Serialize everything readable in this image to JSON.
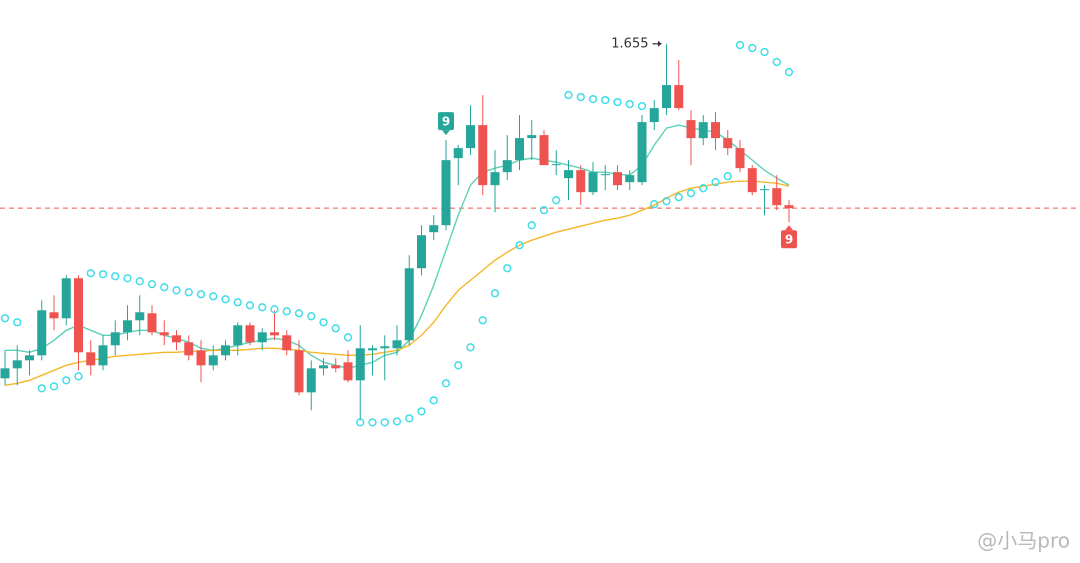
{
  "chart_data": {
    "type": "candlestick",
    "ylim": [
      1.24,
      1.69
    ],
    "up_color": "#26a69a",
    "down_color": "#ef5350",
    "open": [
      1.3876,
      1.3956,
      1.402,
      1.406,
      1.4404,
      1.4356,
      1.4676,
      1.4084,
      1.398,
      1.414,
      1.4244,
      1.434,
      1.4396,
      1.4244,
      1.422,
      1.4164,
      1.41,
      1.398,
      1.406,
      1.414,
      1.43,
      1.4164,
      1.4244,
      1.422,
      1.41,
      1.3764,
      1.3956,
      1.398,
      1.4004,
      1.386,
      1.41,
      1.4116,
      1.4116,
      1.418,
      1.4756,
      1.5044,
      1.51,
      1.5636,
      1.5716,
      1.59,
      1.542,
      1.5524,
      1.562,
      1.5796,
      1.582,
      1.558,
      1.5476,
      1.554,
      1.5364,
      1.55,
      1.5524,
      1.5444,
      1.5444,
      1.5924,
      1.6036,
      1.622,
      1.594,
      1.5796,
      1.5924,
      1.5796,
      1.5716,
      1.5556,
      1.538,
      1.5396,
      1.526
    ],
    "high": [
      1.41,
      1.414,
      1.41,
      1.45,
      1.454,
      1.47,
      1.47,
      1.418,
      1.422,
      1.434,
      1.446,
      1.454,
      1.446,
      1.434,
      1.426,
      1.422,
      1.418,
      1.414,
      1.418,
      1.4324,
      1.4324,
      1.4276,
      1.442,
      1.426,
      1.418,
      1.402,
      1.4036,
      1.4036,
      1.41,
      1.43,
      1.414,
      1.422,
      1.43,
      1.486,
      1.51,
      1.518,
      1.578,
      1.574,
      1.606,
      1.614,
      1.57,
      1.582,
      1.598,
      1.594,
      1.586,
      1.57,
      1.562,
      1.558,
      1.5604,
      1.558,
      1.558,
      1.554,
      1.598,
      1.61,
      1.655,
      1.642,
      1.602,
      1.598,
      1.6004,
      1.586,
      1.578,
      1.558,
      1.542,
      1.55,
      1.53
    ],
    "low": [
      1.382,
      1.382,
      1.39,
      1.402,
      1.426,
      1.43,
      1.394,
      1.39,
      1.394,
      1.406,
      1.418,
      1.422,
      1.422,
      1.414,
      1.41,
      1.402,
      1.3844,
      1.394,
      1.402,
      1.406,
      1.414,
      1.41,
      1.418,
      1.406,
      1.374,
      1.362,
      1.39,
      1.3924,
      1.3844,
      1.354,
      1.39,
      1.386,
      1.406,
      1.414,
      1.47,
      1.498,
      1.506,
      1.542,
      1.566,
      1.534,
      1.5204,
      1.546,
      1.554,
      1.562,
      1.558,
      1.55,
      1.53,
      1.526,
      1.534,
      1.538,
      1.538,
      1.538,
      1.542,
      1.586,
      1.598,
      1.602,
      1.558,
      1.574,
      1.57,
      1.566,
      1.5524,
      1.534,
      1.518,
      1.522,
      1.5124
    ],
    "close": [
      1.3956,
      1.402,
      1.406,
      1.442,
      1.4356,
      1.4676,
      1.4084,
      1.398,
      1.414,
      1.4244,
      1.434,
      1.4404,
      1.4244,
      1.422,
      1.4164,
      1.406,
      1.398,
      1.406,
      1.414,
      1.43,
      1.4164,
      1.4244,
      1.422,
      1.41,
      1.3764,
      1.3956,
      1.398,
      1.3956,
      1.386,
      1.4116,
      1.4116,
      1.4132,
      1.418,
      1.4756,
      1.502,
      1.51,
      1.562,
      1.5716,
      1.59,
      1.542,
      1.5524,
      1.562,
      1.5796,
      1.582,
      1.558,
      1.5588,
      1.554,
      1.5364,
      1.5524,
      1.5508,
      1.542,
      1.55,
      1.5924,
      1.6036,
      1.622,
      1.6036,
      1.5796,
      1.5924,
      1.5796,
      1.5716,
      1.5556,
      1.5364,
      1.5388,
      1.526,
      1.5236
    ],
    "lines": [
      {
        "color": "#5cd1b8",
        "values": [
          1.41,
          1.41,
          1.4084,
          1.4116,
          1.418,
          1.426,
          1.43,
          1.426,
          1.422,
          1.422,
          1.4244,
          1.426,
          1.426,
          1.422,
          1.4196,
          1.4164,
          1.4116,
          1.41,
          1.4116,
          1.414,
          1.4164,
          1.418,
          1.4196,
          1.418,
          1.414,
          1.406,
          1.4004,
          1.398,
          1.3956,
          1.398,
          1.4004,
          1.406,
          1.4084,
          1.418,
          1.438,
          1.462,
          1.49,
          1.518,
          1.542,
          1.5524,
          1.5556,
          1.558,
          1.562,
          1.5636,
          1.562,
          1.5604,
          1.558,
          1.5556,
          1.5524,
          1.5524,
          1.5508,
          1.55,
          1.558,
          1.574,
          1.5876,
          1.59,
          1.5876,
          1.586,
          1.5844,
          1.578,
          1.57,
          1.562,
          1.554,
          1.5476,
          1.542
        ]
      },
      {
        "color": "#f5b727",
        "values": [
          1.382,
          1.3836,
          1.386,
          1.39,
          1.394,
          1.398,
          1.4004,
          1.402,
          1.4036,
          1.4052,
          1.406,
          1.4068,
          1.4076,
          1.4084,
          1.4084,
          1.4092,
          1.4092,
          1.41,
          1.41,
          1.41,
          1.4108,
          1.4116,
          1.4116,
          1.4108,
          1.41,
          1.4084,
          1.4076,
          1.4068,
          1.406,
          1.406,
          1.4068,
          1.4084,
          1.41,
          1.414,
          1.422,
          1.4324,
          1.446,
          1.458,
          1.466,
          1.474,
          1.482,
          1.4884,
          1.494,
          1.498,
          1.5012,
          1.5044,
          1.5068,
          1.5092,
          1.5116,
          1.514,
          1.5156,
          1.518,
          1.522,
          1.526,
          1.5316,
          1.5364,
          1.5396,
          1.5412,
          1.5428,
          1.5444,
          1.5452,
          1.5452,
          1.5444,
          1.5436,
          1.5412
        ]
      }
    ],
    "sar": {
      "color": "#3fdde8",
      "values": [
        1.4356,
        1.4324,
        null,
        1.3796,
        1.3812,
        1.386,
        1.3892,
        1.4716,
        1.4708,
        1.4692,
        1.4676,
        1.4652,
        1.4628,
        1.4604,
        1.458,
        1.4564,
        1.4548,
        1.4532,
        1.4508,
        1.4484,
        1.446,
        1.4444,
        1.4428,
        1.4412,
        1.4396,
        1.4372,
        1.4324,
        1.4276,
        1.4204,
        1.3524,
        1.3524,
        1.3524,
        1.3532,
        1.3556,
        1.3612,
        1.37,
        1.3836,
        1.398,
        1.4124,
        1.434,
        1.4556,
        1.4756,
        1.494,
        1.51,
        1.522,
        1.53,
        1.614,
        1.6124,
        1.6108,
        1.61,
        1.6084,
        1.6068,
        1.6052,
        1.5268,
        1.5292,
        1.5324,
        1.5356,
        1.5396,
        1.5444,
        1.5492,
        1.654,
        1.6516,
        1.6484,
        1.6404,
        1.6324
      ]
    },
    "high_label": "1.655",
    "signals": [
      {
        "index": 36,
        "label": "9",
        "position": "above",
        "color": "#26a69a"
      },
      {
        "index": 64,
        "label": "9",
        "position": "below",
        "color": "#ef5350"
      }
    ],
    "watermark": "@小马pro"
  }
}
